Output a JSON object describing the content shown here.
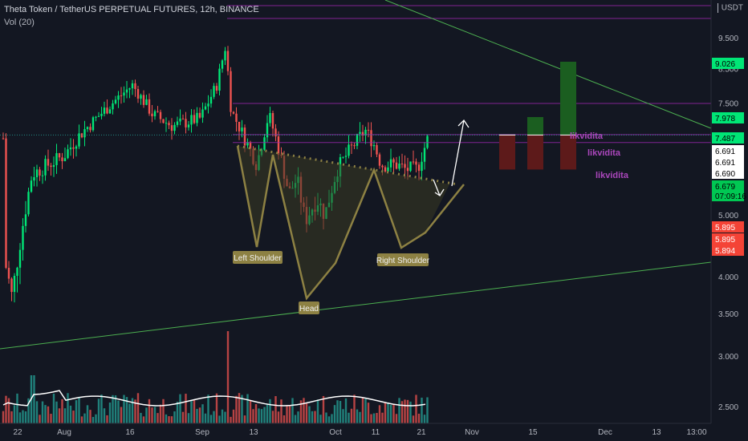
{
  "header": {
    "symbol_title": "Theta Token / TetherUS PERPETUAL FUTURES, 12h, BINANCE",
    "indicator": "Vol (20)",
    "currency": "USDT"
  },
  "chart_data": {
    "type": "candlestick",
    "y_ticks": [
      "9.500",
      "8.500",
      "7.500",
      "6.000",
      "5.000",
      "4.500",
      "4.000",
      "3.500",
      "3.000",
      "2.500"
    ],
    "x_ticks": [
      "22",
      "Aug",
      "16",
      "Sep",
      "13",
      "Oct",
      "11",
      "21",
      "Nov",
      "15",
      "Dec",
      "13",
      "13:00"
    ],
    "price_labels": [
      {
        "text": "9.026",
        "kind": "green"
      },
      {
        "text": "7.978",
        "kind": "green"
      },
      {
        "text": "7.487",
        "kind": "green"
      },
      {
        "text": "6.691",
        "kind": "white"
      },
      {
        "text": "6.691",
        "kind": "white"
      },
      {
        "text": "6.690",
        "kind": "white"
      },
      {
        "text": "6.679",
        "kind": "green"
      },
      {
        "text": "07:09:16",
        "kind": "green"
      },
      {
        "text": "5.895",
        "kind": "red"
      },
      {
        "text": "5.895",
        "kind": "red"
      },
      {
        "text": "5.894",
        "kind": "red"
      }
    ],
    "annotations": {
      "left_shoulder": "Left Shoulder",
      "head": "Head",
      "right_shoulder": "Right Shoulder",
      "liquidity_1": "likvidita",
      "liquidity_2": "likvidita",
      "liquidity_3": "likvidita"
    },
    "levels": [
      9.026,
      7.978,
      7.487,
      6.691,
      6.69,
      6.679,
      5.895
    ],
    "colors": {
      "up": "#26a69a",
      "up_bright": "#00e676",
      "down": "#ef5350",
      "bg": "#131722",
      "purple": "#9c27b0",
      "pattern": "#8d8143",
      "trend": "#4caf50"
    }
  }
}
